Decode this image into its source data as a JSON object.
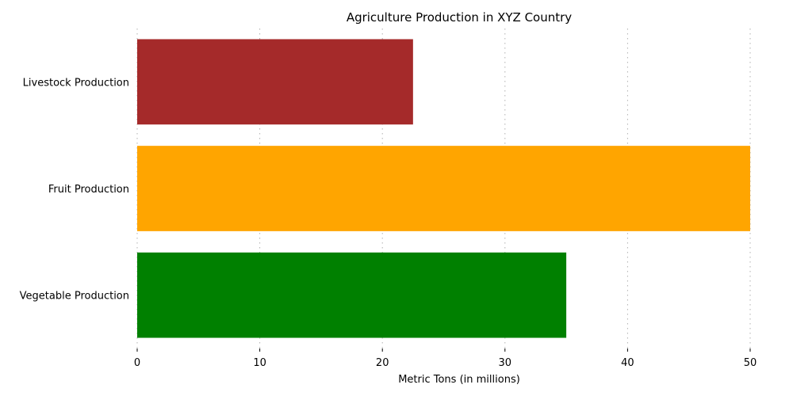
{
  "chart_data": {
    "type": "bar",
    "orientation": "horizontal",
    "title": "Agriculture Production in XYZ Country",
    "xlabel": "Metric Tons (in millions)",
    "ylabel": "",
    "categories": [
      "Livestock Production",
      "Fruit Production",
      "Vegetable Production"
    ],
    "values": [
      22.5,
      50,
      35
    ],
    "colors": [
      "#a52a2a",
      "#ffa500",
      "#008000"
    ],
    "xlim": [
      0,
      50
    ],
    "xticks": [
      0,
      10,
      20,
      30,
      40,
      50
    ],
    "grid": "x-dotted"
  }
}
